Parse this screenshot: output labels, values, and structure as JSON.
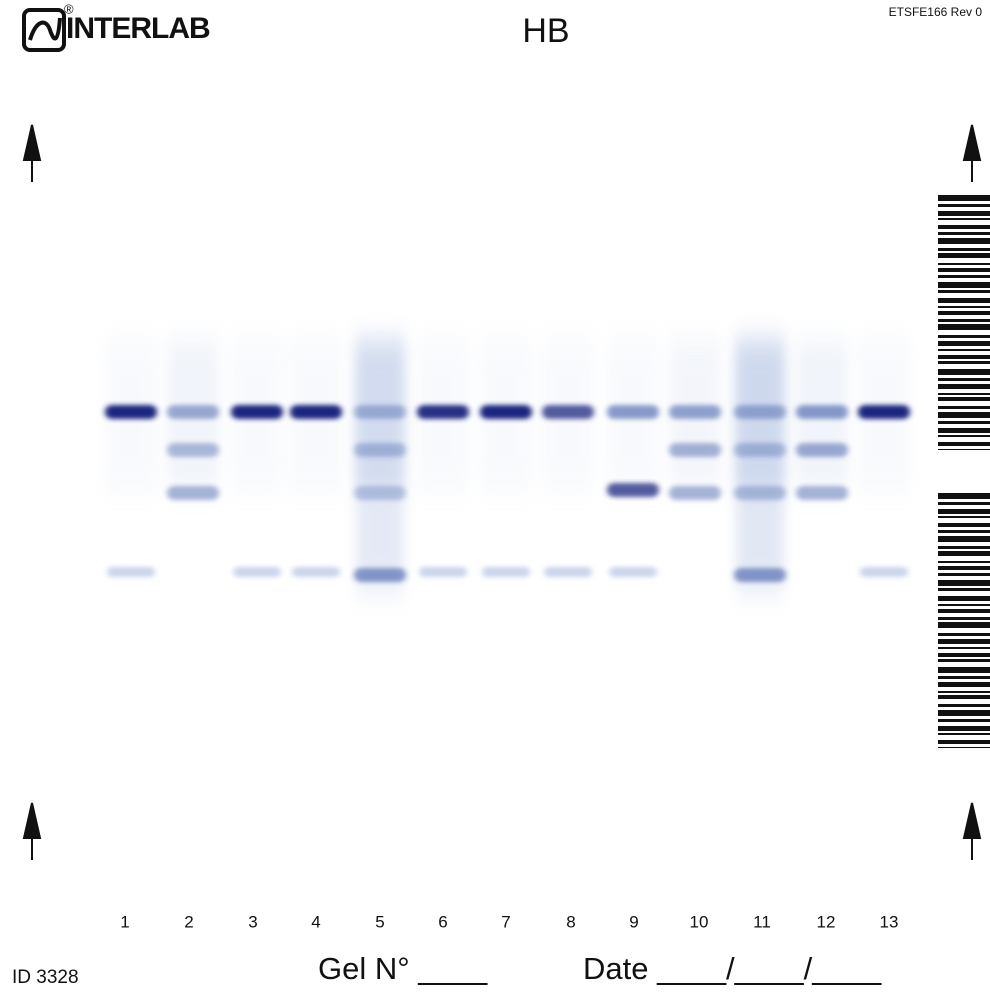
{
  "header": {
    "logo": "INTERLAB",
    "logo_mark": "®",
    "title": "HB",
    "code": "ETSFE166  Rev 0"
  },
  "lanes": [
    "1",
    "2",
    "3",
    "4",
    "5",
    "6",
    "7",
    "8",
    "9",
    "10",
    "11",
    "12",
    "13"
  ],
  "footer": {
    "id": "ID  3328",
    "gel": "Gel N° ____",
    "date": "Date ____/____/____"
  }
}
